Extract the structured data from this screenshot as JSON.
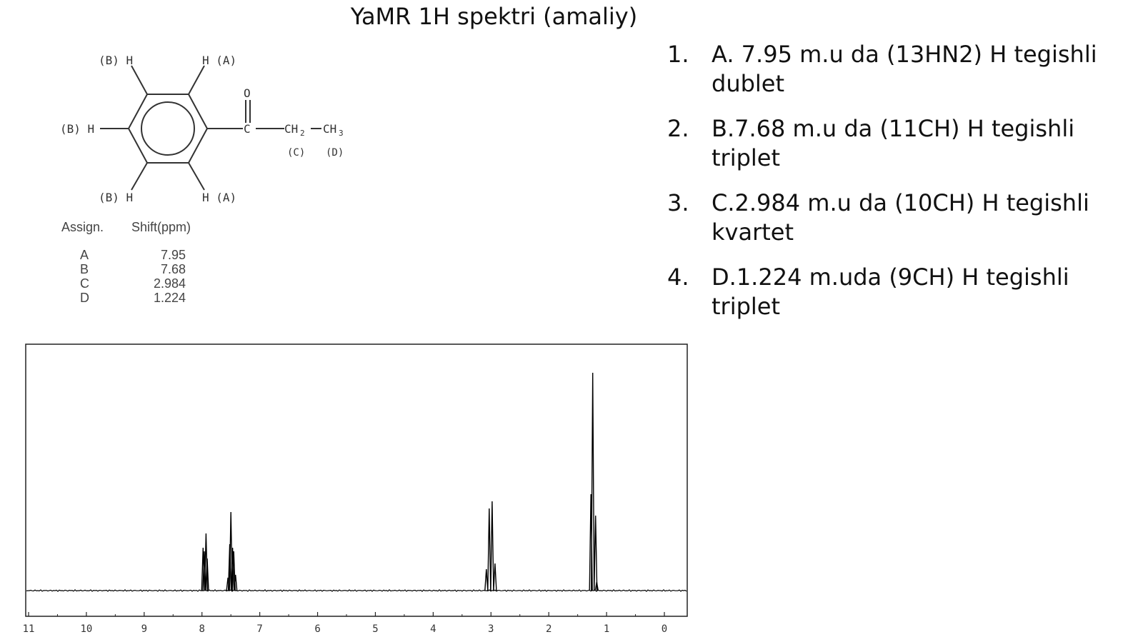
{
  "slide": {
    "title": "YaMR 1H spektri (amaliy)"
  },
  "structure": {
    "labels": {
      "h_b_top": "(B) H",
      "h_a_top": "H (A)",
      "h_b_left": "(B) H",
      "h_b_bottom": "(B) H",
      "h_a_bottom": "H (A)",
      "oxygen": "O",
      "carbon": "C",
      "ch2": "CH",
      "ch2_sub": "2",
      "ch3": "CH",
      "ch3_sub": "3",
      "label_c": "(C)",
      "label_d": "(D)"
    }
  },
  "assignment_table": {
    "header_assign": "Assign.",
    "header_shift": "Shift(ppm)",
    "rows": [
      {
        "assign": "A",
        "shift": "7.95"
      },
      {
        "assign": "B",
        "shift": "7.68"
      },
      {
        "assign": "C",
        "shift": "2.984"
      },
      {
        "assign": "D",
        "shift": "1.224"
      }
    ]
  },
  "spectrum": {
    "x_ticks": [
      "11",
      "10",
      "9",
      "8",
      "7",
      "6",
      "5",
      "4",
      "3",
      "2",
      "1",
      "0"
    ],
    "x_range_ppm": [
      11,
      0
    ],
    "line_color": "#000000"
  },
  "list": [
    {
      "num": "1.",
      "text": "A. 7.95 m.u da (13HN2) H tegishli dublet"
    },
    {
      "num": "2.",
      "text": "B.7.68 m.u da (11CH) H tegishli triplet"
    },
    {
      "num": "3.",
      "text": "C.2.984 m.u da (10CH) H tegishli kvartet"
    },
    {
      "num": "4.",
      "text": "D.1.224 m.uda (9CH) H tegishli triplet"
    }
  ]
}
